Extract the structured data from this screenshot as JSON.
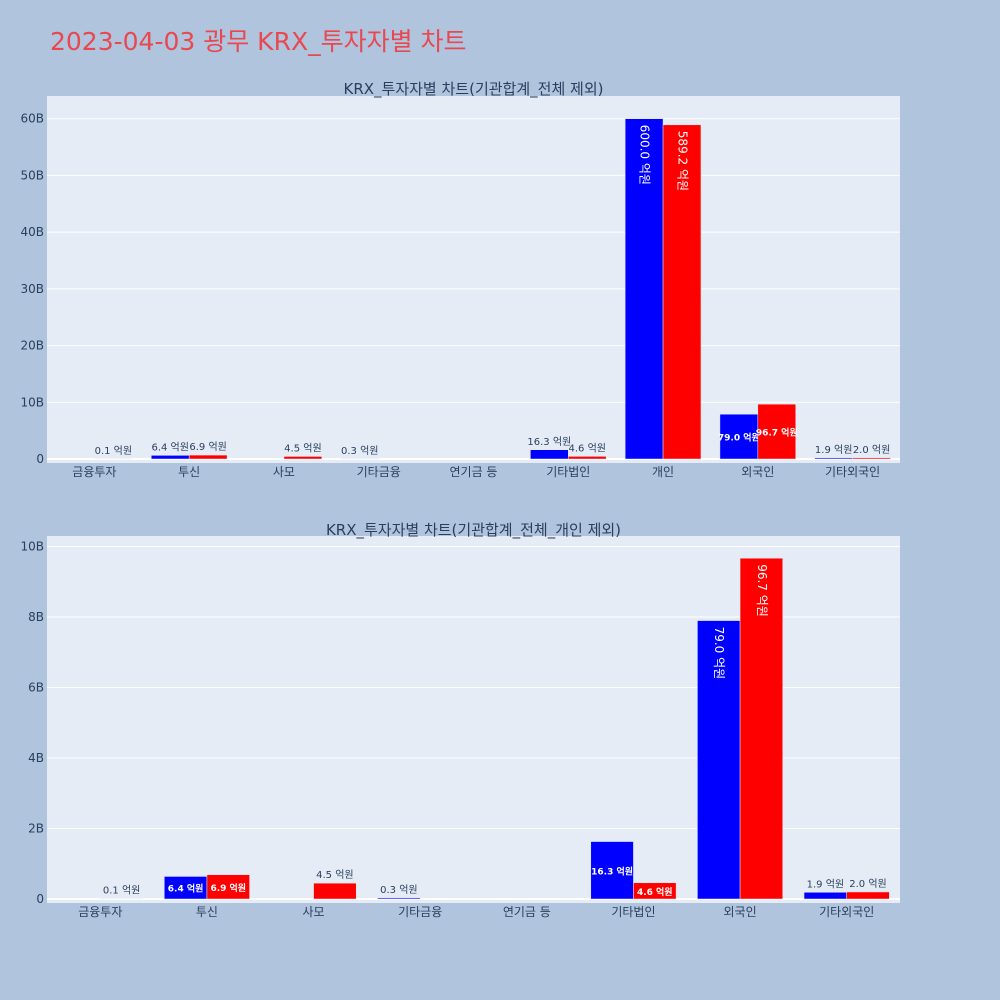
{
  "title": "2023-04-03 광무 KRX_투자자별 차트",
  "colors": {
    "background": "#b0c4de",
    "plot_bg": "#e5ecf6",
    "series_a": "#0000ff",
    "series_b": "#ff0000",
    "title": "#e8484f"
  },
  "chart_data": [
    {
      "type": "bar",
      "title": "KRX_투자자별 차트(기관합계_전체 제외)",
      "categories": [
        "금융투자",
        "투신",
        "사모",
        "기타금융",
        "연기금 등",
        "기타법인",
        "개인",
        "외국인",
        "기타외국인"
      ],
      "yticks": [
        "0",
        "10B",
        "20B",
        "30B",
        "40B",
        "50B",
        "60B"
      ],
      "ylim": [
        0,
        64
      ],
      "grid": true,
      "series": [
        {
          "color": "#0000ff",
          "values": [
            0.0,
            0.64,
            0.0,
            0.03,
            0.0,
            1.63,
            60.0,
            7.9,
            0.19
          ],
          "labels": [
            "",
            "6.4 억원",
            "",
            "0.3 억원",
            "",
            "16.3 억원",
            "600.0 억원",
            "79.0 억원",
            "1.9 억원"
          ]
        },
        {
          "color": "#ff0000",
          "values": [
            0.01,
            0.69,
            0.45,
            0.0,
            0.0,
            0.46,
            58.92,
            9.67,
            0.2
          ],
          "labels": [
            "0.1 억원",
            "6.9 억원",
            "4.5 억원",
            "",
            "",
            "4.6 억원",
            "589.2 억원",
            "96.7 억원",
            "2.0 억원"
          ]
        }
      ]
    },
    {
      "type": "bar",
      "title": "KRX_투자자별 차트(기관합계_전체_개인 제외)",
      "categories": [
        "금융투자",
        "투신",
        "사모",
        "기타금융",
        "연기금 등",
        "기타법인",
        "외국인",
        "기타외국인"
      ],
      "yticks": [
        "0",
        "2B",
        "4B",
        "6B",
        "8B",
        "10B"
      ],
      "ylim": [
        0,
        10.3
      ],
      "grid": true,
      "series": [
        {
          "color": "#0000ff",
          "values": [
            0.0,
            0.64,
            0.0,
            0.03,
            0.0,
            1.63,
            7.9,
            0.19
          ],
          "labels": [
            "",
            "6.4 억원",
            "",
            "0.3 억원",
            "",
            "16.3 억원",
            "79.0 억원",
            "1.9 억원"
          ]
        },
        {
          "color": "#ff0000",
          "values": [
            0.01,
            0.69,
            0.45,
            0.0,
            0.0,
            0.46,
            9.67,
            0.2
          ],
          "labels": [
            "0.1 억원",
            "6.9 억원",
            "4.5 억원",
            "",
            "",
            "4.6 억원",
            "96.7 억원",
            "2.0 억원"
          ]
        }
      ]
    }
  ]
}
